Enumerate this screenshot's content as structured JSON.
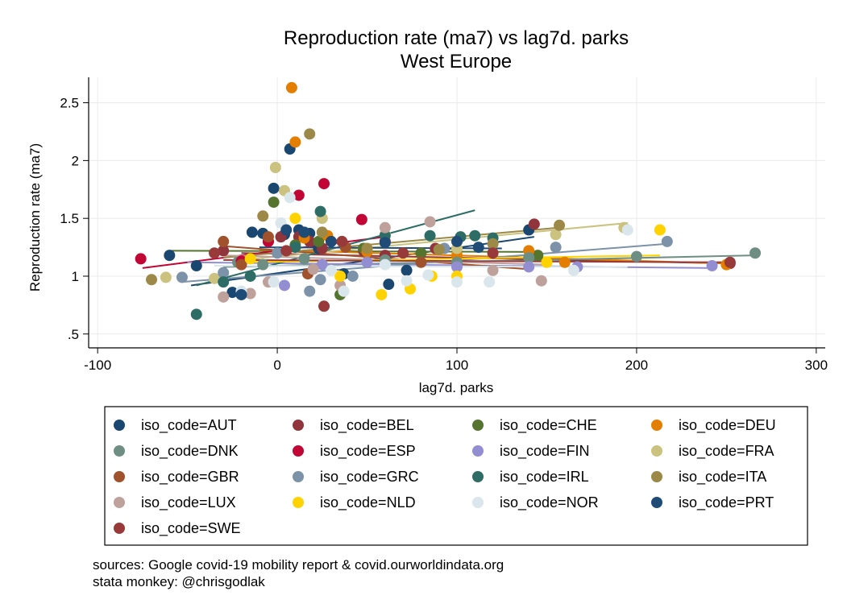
{
  "chart_data": {
    "type": "scatter",
    "title": "Reproduction rate (ma7) vs lag7d. parks",
    "subtitle": "West Europe",
    "xlabel": "lag7d. parks",
    "ylabel": "Reproduction rate (ma7)",
    "xlim": [
      -105,
      305
    ],
    "ylim": [
      0.38,
      2.72
    ],
    "x_ticks": [
      -100,
      0,
      100,
      200,
      300
    ],
    "x_tick_labels": [
      "-100",
      "0",
      "100",
      "200",
      "300"
    ],
    "y_ticks": [
      0.5,
      1,
      1.5,
      2,
      2.5
    ],
    "y_tick_labels": [
      ".5",
      "1",
      "1.5",
      "2",
      "2.5"
    ],
    "grid": true,
    "legend_position": "bottom",
    "series": [
      {
        "name": "iso_code=AUT",
        "color": "#1a476f",
        "points": [
          [
            -60,
            1.18
          ],
          [
            -45,
            1.09
          ],
          [
            -25,
            0.86
          ],
          [
            -14,
            1.38
          ],
          [
            -8,
            1.37
          ],
          [
            -2,
            1.76
          ],
          [
            4,
            1.36
          ],
          [
            7,
            2.1
          ],
          [
            12,
            1.4
          ],
          [
            18,
            1.37
          ],
          [
            23,
            1.24
          ],
          [
            37,
            1.02
          ],
          [
            62,
            0.93
          ],
          [
            72,
            1.05
          ],
          [
            140,
            1.4
          ]
        ],
        "fit": [
          [
            -48,
            0.92
          ],
          [
            143,
            1.34
          ]
        ]
      },
      {
        "name": "iso_code=BEL",
        "color": "#90353b",
        "points": [
          [
            -30,
            1.22
          ],
          [
            -5,
            1.3
          ],
          [
            2,
            1.34
          ],
          [
            12,
            1.34
          ],
          [
            18,
            1.3
          ],
          [
            25,
            1.24
          ],
          [
            48,
            1.22
          ],
          [
            60,
            1.18
          ],
          [
            88,
            1.24
          ],
          [
            143,
            1.45
          ],
          [
            252,
            1.11
          ]
        ],
        "fit": [
          [
            -20,
            1.2
          ],
          [
            252,
            1.11
          ]
        ]
      },
      {
        "name": "iso_code=CHE",
        "color": "#55752f",
        "points": [
          [
            -2,
            1.64
          ],
          [
            10,
            1.27
          ],
          [
            23,
            1.3
          ],
          [
            35,
            0.84
          ],
          [
            48,
            1.24
          ],
          [
            80,
            1.2
          ],
          [
            145,
            1.18
          ]
        ],
        "fit": [
          [
            -60,
            1.22
          ],
          [
            145,
            1.21
          ]
        ]
      },
      {
        "name": "iso_code=DEU",
        "color": "#e37e00",
        "points": [
          [
            8,
            2.63
          ],
          [
            10,
            2.16
          ],
          [
            15,
            1.33
          ],
          [
            28,
            1.35
          ],
          [
            50,
            1.21
          ],
          [
            100,
            1.18
          ],
          [
            140,
            1.22
          ],
          [
            160,
            1.12
          ],
          [
            250,
            1.1
          ]
        ],
        "fit": [
          [
            -10,
            1.23
          ],
          [
            250,
            1.11
          ]
        ]
      },
      {
        "name": "iso_code=DNK",
        "color": "#6e8e84",
        "points": [
          [
            -22,
            1.12
          ],
          [
            -8,
            1.1
          ],
          [
            15,
            1.15
          ],
          [
            60,
            1.14
          ],
          [
            100,
            1.12
          ],
          [
            140,
            1.16
          ],
          [
            200,
            1.17
          ],
          [
            266,
            1.2
          ]
        ],
        "fit": [
          [
            -30,
            1.08
          ],
          [
            266,
            1.18
          ]
        ]
      },
      {
        "name": "iso_code=ESP",
        "color": "#c10534",
        "points": [
          [
            -76,
            1.15
          ],
          [
            -20,
            1.13
          ],
          [
            -5,
            1.3
          ],
          [
            12,
            1.7
          ],
          [
            26,
            1.8
          ],
          [
            47,
            1.49
          ],
          [
            60,
            1.3
          ]
        ],
        "fit": [
          [
            -75,
            1.07
          ],
          [
            60,
            1.34
          ]
        ]
      },
      {
        "name": "iso_code=FIN",
        "color": "#938dd2",
        "points": [
          [
            4,
            0.92
          ],
          [
            25,
            1.1
          ],
          [
            50,
            1.12
          ],
          [
            100,
            1.08
          ],
          [
            140,
            1.08
          ],
          [
            167,
            1.08
          ],
          [
            242,
            1.09
          ]
        ],
        "fit": [
          [
            -50,
            1.12
          ],
          [
            242,
            1.07
          ]
        ]
      },
      {
        "name": "iso_code=FRA",
        "color": "#cac27e",
        "points": [
          [
            -62,
            0.99
          ],
          [
            -35,
            0.98
          ],
          [
            -1,
            1.94
          ],
          [
            4,
            1.74
          ],
          [
            25,
            1.5
          ],
          [
            60,
            1.36
          ],
          [
            100,
            1.24
          ],
          [
            155,
            1.36
          ],
          [
            193,
            1.42
          ]
        ],
        "fit": [
          [
            -20,
            1.14
          ],
          [
            195,
            1.46
          ]
        ]
      },
      {
        "name": "iso_code=GBR",
        "color": "#a0522d",
        "points": [
          [
            -30,
            1.3
          ],
          [
            -20,
            1.1
          ],
          [
            -5,
            1.34
          ],
          [
            17,
            1.02
          ],
          [
            38,
            1.25
          ],
          [
            80,
            1.12
          ]
        ],
        "fit": [
          [
            -30,
            1.26
          ],
          [
            140,
            1.06
          ]
        ]
      },
      {
        "name": "iso_code=GRC",
        "color": "#7b92a8",
        "points": [
          [
            -53,
            0.99
          ],
          [
            -30,
            1.03
          ],
          [
            0,
            1.2
          ],
          [
            18,
            0.87
          ],
          [
            24,
            0.97
          ],
          [
            42,
            1.0
          ],
          [
            93,
            1.24
          ],
          [
            155,
            1.25
          ],
          [
            217,
            1.3
          ]
        ],
        "fit": [
          [
            -53,
            0.95
          ],
          [
            217,
            1.28
          ]
        ]
      },
      {
        "name": "iso_code=IRL",
        "color": "#2d6d66",
        "points": [
          [
            -45,
            0.67
          ],
          [
            -30,
            0.95
          ],
          [
            -15,
            1.0
          ],
          [
            10,
            1.25
          ],
          [
            24,
            1.56
          ],
          [
            60,
            1.35
          ],
          [
            85,
            1.35
          ],
          [
            102,
            1.34
          ],
          [
            110,
            1.35
          ],
          [
            120,
            1.33
          ]
        ],
        "fit": [
          [
            -45,
            0.92
          ],
          [
            110,
            1.57
          ]
        ]
      },
      {
        "name": "iso_code=ITA",
        "color": "#9c8847",
        "points": [
          [
            -70,
            0.97
          ],
          [
            -8,
            1.52
          ],
          [
            18,
            2.23
          ],
          [
            25,
            1.38
          ],
          [
            50,
            1.24
          ],
          [
            90,
            1.23
          ],
          [
            120,
            1.28
          ],
          [
            157,
            1.44
          ]
        ],
        "fit": [
          [
            -30,
            1.16
          ],
          [
            157,
            1.42
          ]
        ]
      },
      {
        "name": "iso_code=LUX",
        "color": "#bfa19c",
        "points": [
          [
            -30,
            0.82
          ],
          [
            -15,
            0.85
          ],
          [
            -5,
            0.95
          ],
          [
            20,
            1.06
          ],
          [
            35,
            0.92
          ],
          [
            60,
            1.42
          ],
          [
            85,
            1.47
          ],
          [
            120,
            1.05
          ],
          [
            147,
            0.96
          ]
        ],
        "fit": [
          [
            -30,
            1.18
          ],
          [
            150,
            1.1
          ]
        ]
      },
      {
        "name": "iso_code=NLD",
        "color": "#ffd200",
        "points": [
          [
            -15,
            1.15
          ],
          [
            10,
            1.5
          ],
          [
            35,
            1.0
          ],
          [
            58,
            0.84
          ],
          [
            74,
            0.89
          ],
          [
            86,
            1.0
          ],
          [
            100,
            1.0
          ],
          [
            150,
            1.12
          ],
          [
            213,
            1.4
          ]
        ],
        "fit": [
          [
            -20,
            1.12
          ],
          [
            213,
            1.18
          ]
        ]
      },
      {
        "name": "iso_code=NOR",
        "color": "#d9e6eb",
        "points": [
          [
            -20,
            0.87
          ],
          [
            -2,
            0.95
          ],
          [
            2,
            1.46
          ],
          [
            7,
            1.68
          ],
          [
            30,
            1.05
          ],
          [
            37,
            0.87
          ],
          [
            60,
            1.1
          ],
          [
            72,
            0.96
          ],
          [
            84,
            1.01
          ],
          [
            100,
            0.95
          ],
          [
            118,
            0.95
          ],
          [
            165,
            1.05
          ],
          [
            195,
            1.4
          ]
        ],
        "fit": [
          [
            -35,
            1.09
          ],
          [
            195,
            1.08
          ]
        ]
      },
      {
        "name": "iso_code=PRT",
        "color": "#1f4b77",
        "points": [
          [
            -20,
            0.84
          ],
          [
            5,
            1.4
          ],
          [
            15,
            1.38
          ],
          [
            30,
            1.3
          ],
          [
            60,
            1.29
          ],
          [
            100,
            1.3
          ],
          [
            112,
            1.25
          ]
        ],
        "fit": [
          [
            -10,
            1.25
          ],
          [
            125,
            1.24
          ]
        ]
      },
      {
        "name": "iso_code=SWE",
        "color": "#983a3a",
        "points": [
          [
            -35,
            1.2
          ],
          [
            5,
            1.22
          ],
          [
            26,
            0.74
          ],
          [
            36,
            1.3
          ],
          [
            70,
            1.2
          ],
          [
            120,
            1.2
          ],
          [
            252,
            1.12
          ]
        ],
        "fit": [
          [
            -30,
            1.14
          ],
          [
            250,
            1.12
          ]
        ]
      }
    ]
  },
  "footer": {
    "source_line": "sources: Google covid-19 mobility report & covid.ourworldindata.org",
    "credit_line": "stata monkey: @chrisgodlak"
  }
}
